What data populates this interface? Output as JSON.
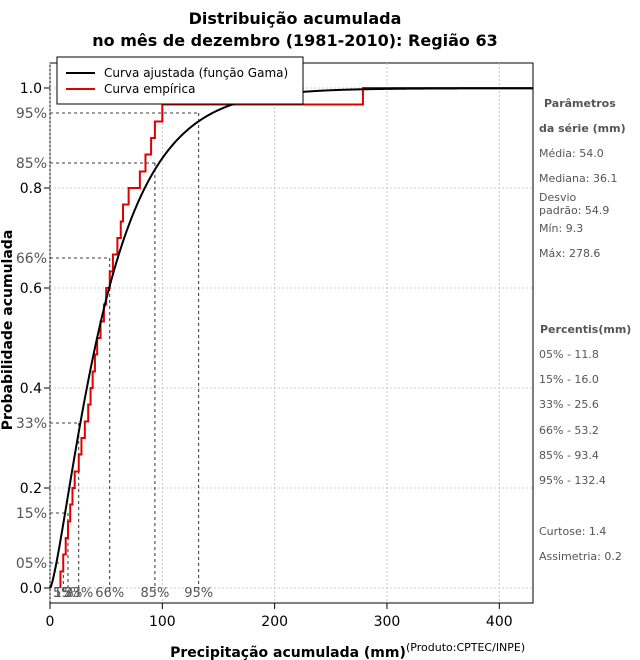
{
  "chart_data": {
    "type": "line",
    "title_line1": "Distribuição acumulada",
    "title_line2": "no mês de dezembro (1981-2010): Região 63",
    "xlabel": "Precipitação acumulada (mm)",
    "ylabel": "Probabilidade acumulada",
    "credit": "(Produto:CPTEC/INPE)",
    "xlim": [
      0,
      430
    ],
    "ylim": [
      -0.03,
      1.05
    ],
    "x_ticks": [
      0,
      100,
      200,
      300,
      400
    ],
    "x_tick_labels": [
      "0",
      "100",
      "200",
      "300",
      "400"
    ],
    "y_ticks": [
      0.0,
      0.2,
      0.4,
      0.6,
      0.8,
      1.0
    ],
    "y_tick_labels": [
      "0.0",
      "0.2",
      "0.4",
      "0.6",
      "0.8",
      "1.0"
    ],
    "grid": true,
    "legend_position": "top-left",
    "legend": [
      {
        "label": "Curva ajustada (função Gama)",
        "color": "#000000"
      },
      {
        "label": "Curva empírica",
        "color": "#e00000"
      }
    ],
    "gamma_fit": {
      "shape": 1.4,
      "scale": 38.6,
      "color": "#000000",
      "x_max": 430
    },
    "empirical_steps": {
      "color": "#e00000",
      "x": [
        9.3,
        11.8,
        14,
        16,
        18,
        20,
        22,
        25.6,
        28,
        31,
        34,
        36.1,
        38,
        40,
        42,
        45,
        48,
        50,
        53.2,
        56,
        60,
        63,
        65,
        70,
        80,
        85,
        90,
        93.4,
        100,
        110,
        132.4,
        150,
        170,
        278.6
      ],
      "y": [
        0.033,
        0.067,
        0.1,
        0.133,
        0.167,
        0.2,
        0.233,
        0.267,
        0.3,
        0.333,
        0.367,
        0.4,
        0.433,
        0.467,
        0.5,
        0.533,
        0.567,
        0.6,
        0.633,
        0.667,
        0.7,
        0.733,
        0.767,
        0.8,
        0.833,
        0.867,
        0.9,
        0.933,
        0.967,
        0.967,
        0.967,
        0.967,
        0.967,
        1.0
      ]
    },
    "percentile_markers": [
      {
        "p": 0.05,
        "x": 11.8,
        "label_y": "05%",
        "label_x": "5%"
      },
      {
        "p": 0.15,
        "x": 16.0,
        "label_y": "15%",
        "label_x": "15%"
      },
      {
        "p": 0.33,
        "x": 25.6,
        "label_y": "33%",
        "label_x": "33%"
      },
      {
        "p": 0.66,
        "x": 53.2,
        "label_y": "66%",
        "label_x": "66%"
      },
      {
        "p": 0.85,
        "x": 93.4,
        "label_y": "85%",
        "label_x": "85%"
      },
      {
        "p": 0.95,
        "x": 132.4,
        "label_y": "95%",
        "label_x": "95%"
      }
    ]
  },
  "side_panel": {
    "params_head_1": "Parâmetros",
    "params_head_2": "da série (mm)",
    "media": "Média: 54.0",
    "mediana": "Mediana: 36.1",
    "desvio_1": "Desvio",
    "desvio_2": "padrão: 54.9",
    "min": "Mín: 9.3",
    "max": "Máx: 278.6",
    "percentis_head": "Percentis(mm)",
    "percentis": [
      "05% - 11.8",
      "15% - 16.0",
      "33% - 25.6",
      "66% - 53.2",
      "85% - 93.4",
      "95% - 132.4"
    ],
    "curtose": "Curtose: 1.4",
    "assimetria": "Assimetria: 0.2"
  }
}
